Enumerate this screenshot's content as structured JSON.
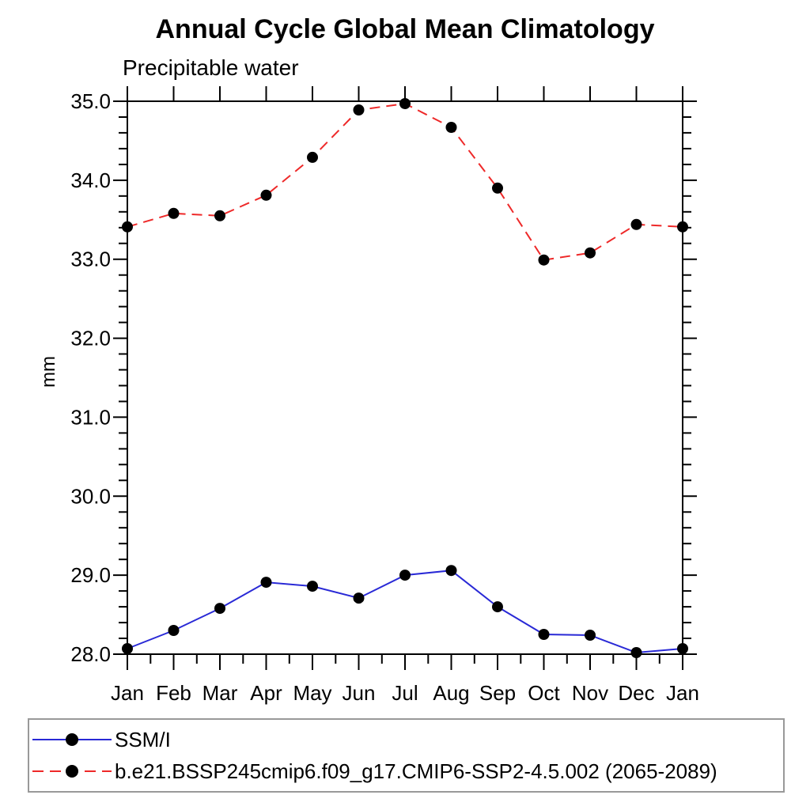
{
  "chart_data": {
    "type": "line",
    "title": "Annual Cycle Global Mean Climatology",
    "subtitle": "Precipitable water",
    "ylabel": "mm",
    "xlabel": "",
    "categories": [
      "Jan",
      "Feb",
      "Mar",
      "Apr",
      "May",
      "Jun",
      "Jul",
      "Aug",
      "Sep",
      "Oct",
      "Nov",
      "Dec",
      "Jan"
    ],
    "series": [
      {
        "name": "SSM/I",
        "style": "solid",
        "color_key": "obs",
        "marker": "filled-circle",
        "values": [
          28.07,
          28.3,
          28.58,
          28.91,
          28.86,
          28.71,
          29.0,
          29.06,
          28.6,
          28.25,
          28.24,
          28.02,
          28.07
        ]
      },
      {
        "name": "b.e21.BSSP245cmip6.f09_g17.CMIP6-SSP2-4.5.002 (2065-2089)",
        "style": "dashed",
        "color_key": "model",
        "marker": "filled-circle",
        "values": [
          33.41,
          33.58,
          33.55,
          33.81,
          34.29,
          34.89,
          34.97,
          34.67,
          33.9,
          32.99,
          33.08,
          33.44,
          33.41
        ]
      }
    ],
    "ylim": [
      28.0,
      35.0
    ],
    "ytick_step": 1.0,
    "ytick_minor_step": 0.2,
    "ytick_labels": [
      "28.0",
      "29.0",
      "30.0",
      "31.0",
      "32.0",
      "33.0",
      "34.0",
      "35.0"
    ],
    "grid": false,
    "legend_position": "bottom-left",
    "colors": {
      "obs": "#2929d6",
      "model": "#ee2929",
      "marker": "#000000",
      "axis": "#000000",
      "legend_border": "#999999",
      "text": "#000000"
    }
  }
}
